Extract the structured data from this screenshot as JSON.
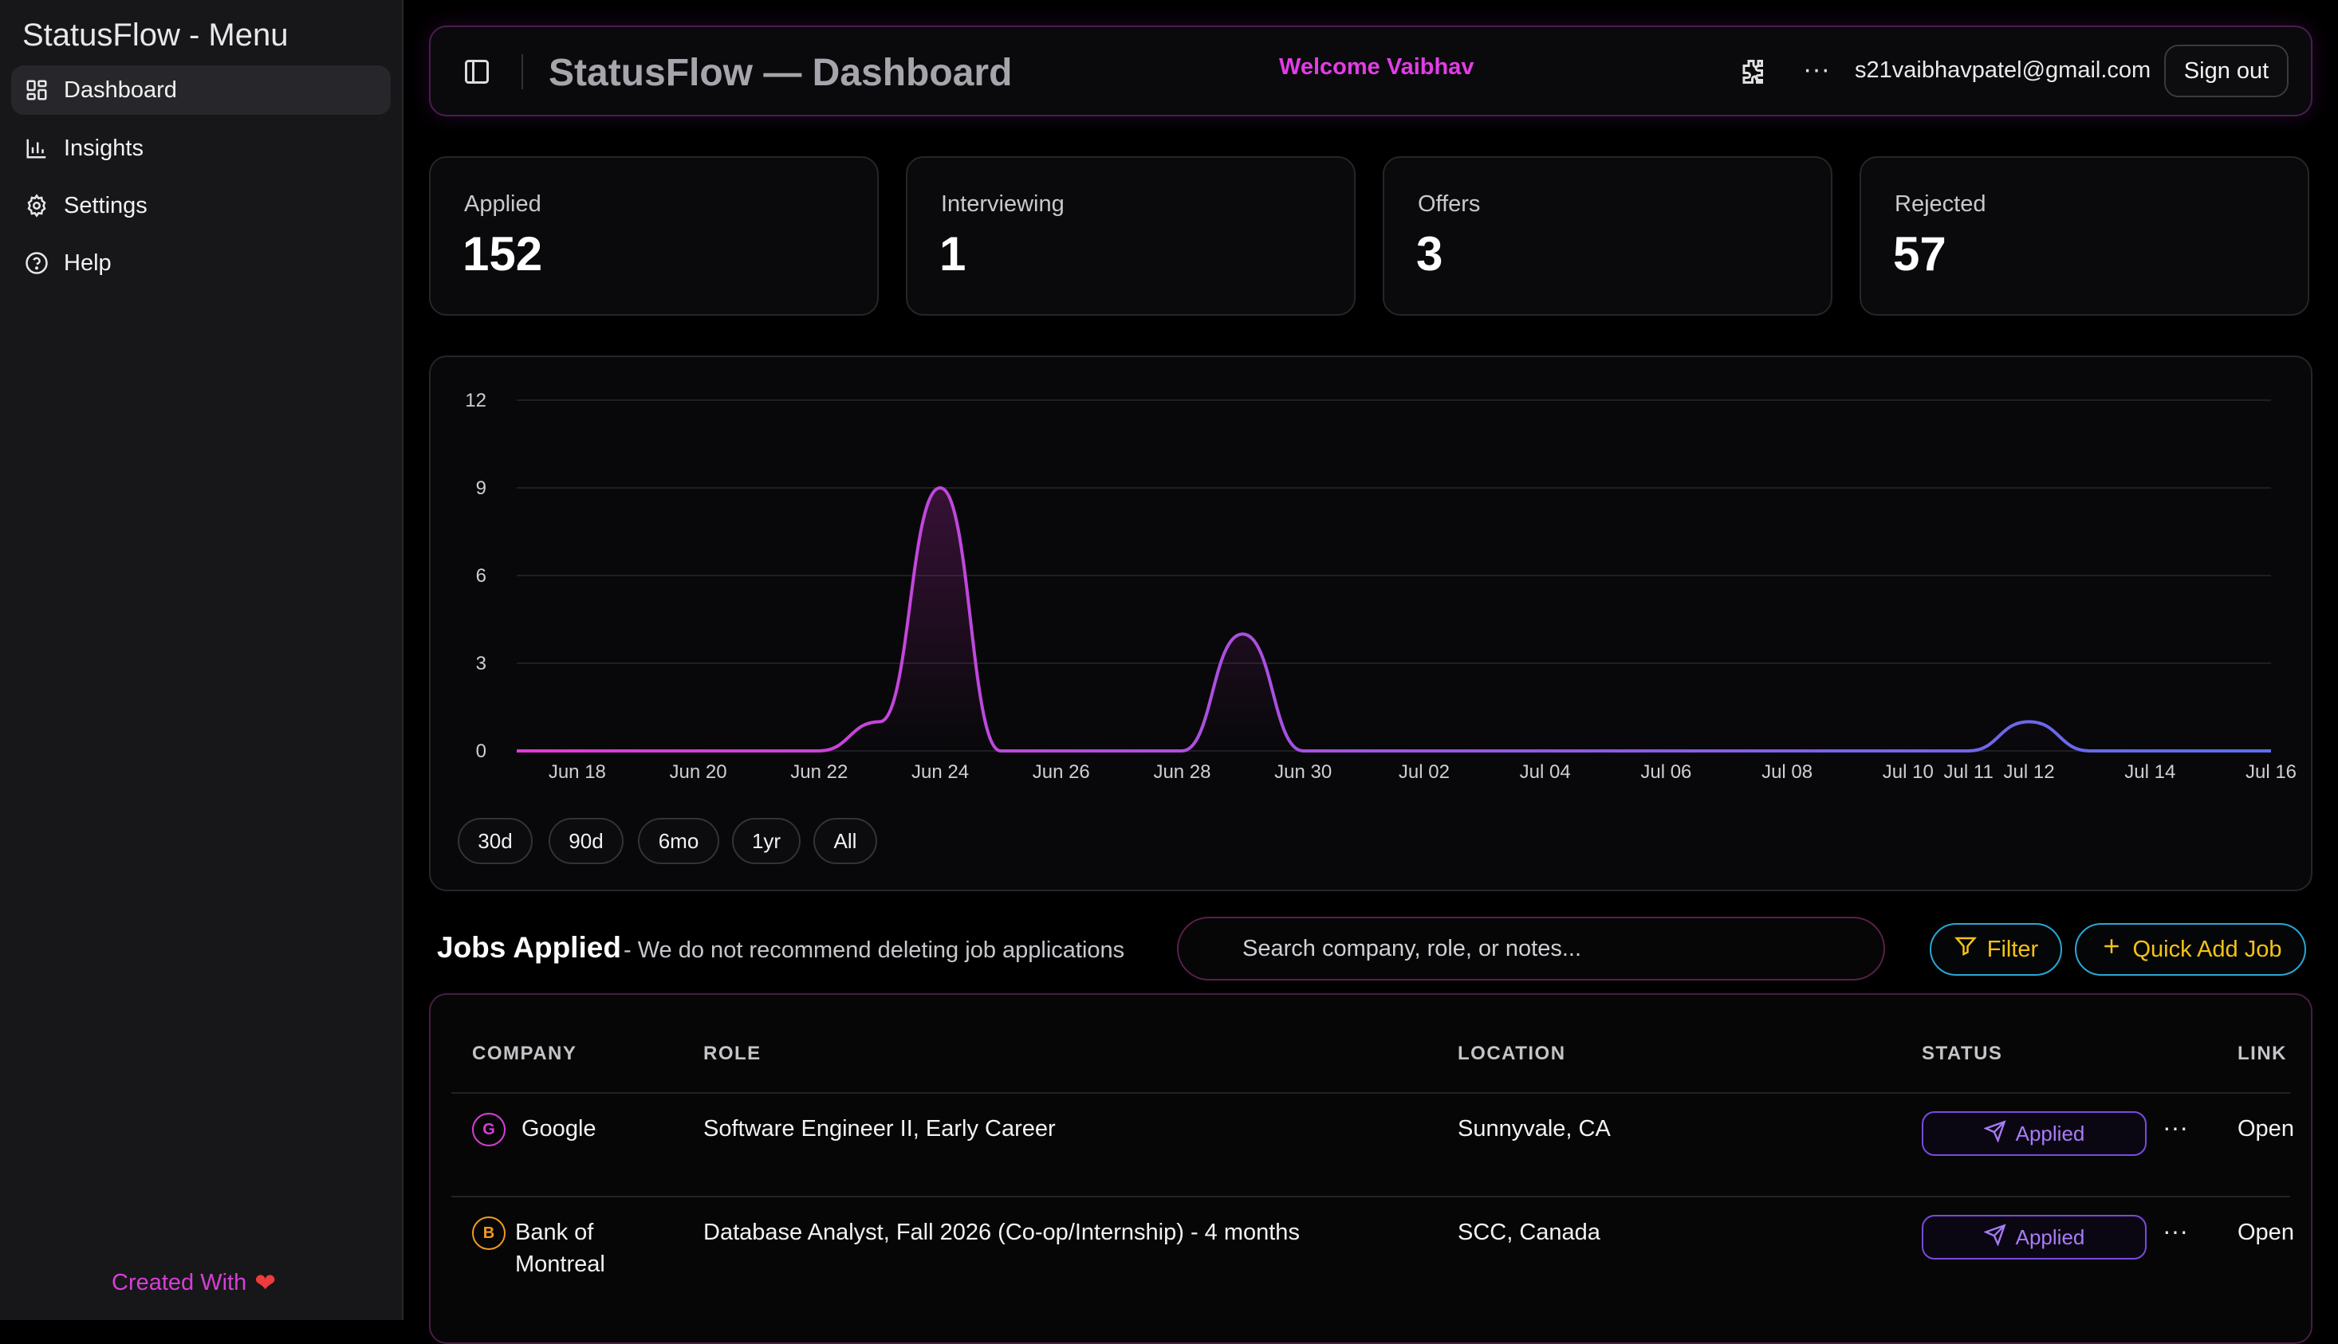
{
  "sidebar": {
    "title": "StatusFlow - Menu",
    "items": [
      {
        "label": "Dashboard",
        "icon": "layout-grid-icon",
        "active": true
      },
      {
        "label": "Insights",
        "icon": "bar-chart-icon",
        "active": false
      },
      {
        "label": "Settings",
        "icon": "gear-icon",
        "active": false
      },
      {
        "label": "Help",
        "icon": "help-circle-icon",
        "active": false
      }
    ],
    "footer": "Created With",
    "footer_icon": "heart-icon"
  },
  "header": {
    "title": "StatusFlow — Dashboard",
    "welcome": "Welcome Vaibhav",
    "email": "s21vaibhavpatel@gmail.com",
    "signout_label": "Sign out",
    "more_label": "···"
  },
  "stats": [
    {
      "label": "Applied",
      "value": "152"
    },
    {
      "label": "Interviewing",
      "value": "1"
    },
    {
      "label": "Offers",
      "value": "3"
    },
    {
      "label": "Rejected",
      "value": "57"
    }
  ],
  "chart_data": {
    "type": "line",
    "x": [
      "Jun 17",
      "Jun 18",
      "Jun 19",
      "Jun 20",
      "Jun 21",
      "Jun 22",
      "Jun 23",
      "Jun 24",
      "Jun 25",
      "Jun 26",
      "Jun 27",
      "Jun 28",
      "Jun 29",
      "Jun 30",
      "Jul 01",
      "Jul 02",
      "Jul 03",
      "Jul 04",
      "Jul 05",
      "Jul 06",
      "Jul 07",
      "Jul 08",
      "Jul 09",
      "Jul 10",
      "Jul 11",
      "Jul 12",
      "Jul 13",
      "Jul 14",
      "Jul 15",
      "Jul 16"
    ],
    "values": [
      0,
      0,
      0,
      0,
      0,
      0,
      1,
      9,
      0,
      0,
      0,
      0,
      4,
      0,
      0,
      0,
      0,
      0,
      0,
      0,
      0,
      0,
      0,
      0,
      0,
      1,
      0,
      0,
      0,
      0
    ],
    "x_tick_labels": [
      "Jun 18",
      "Jun 20",
      "Jun 22",
      "Jun 24",
      "Jun 26",
      "Jun 28",
      "Jun 30",
      "Jul 02",
      "Jul 04",
      "Jul 06",
      "Jul 08",
      "Jul 10",
      "Jul 11",
      "Jul 12",
      "Jul 14",
      "Jul 16"
    ],
    "y_ticks": [
      0,
      3,
      6,
      9,
      12
    ],
    "ylim": [
      0,
      12
    ],
    "grid": true,
    "gradient_colors": [
      "#e23ad6",
      "#5b6ef0"
    ]
  },
  "ranges": [
    "30d",
    "90d",
    "6mo",
    "1yr",
    "All"
  ],
  "jobs": {
    "title": "Jobs Applied",
    "subtitle": "- We do not recommend deleting job applications",
    "search_placeholder": "Search company, role, or notes...",
    "filter_label": "Filter",
    "quick_add_label": "Quick Add Job",
    "columns": [
      "COMPANY",
      "ROLE",
      "LOCATION",
      "STATUS",
      "LINK"
    ],
    "rows": [
      {
        "letter": "G",
        "letter_color": "#d63fd6",
        "company": "Google",
        "role": "Software Engineer II, Early Career",
        "location": "Sunnyvale, CA",
        "status": "Applied",
        "link": "Open"
      },
      {
        "letter": "B",
        "letter_color": "#f29a1f",
        "company_line1": "Bank of",
        "company_line2": "Montreal",
        "role": "Database Analyst, Fall 2026 (Co-op/Internship) - 4 months",
        "location": "SCC, Canada",
        "status": "Applied",
        "link": "Open"
      }
    ]
  }
}
